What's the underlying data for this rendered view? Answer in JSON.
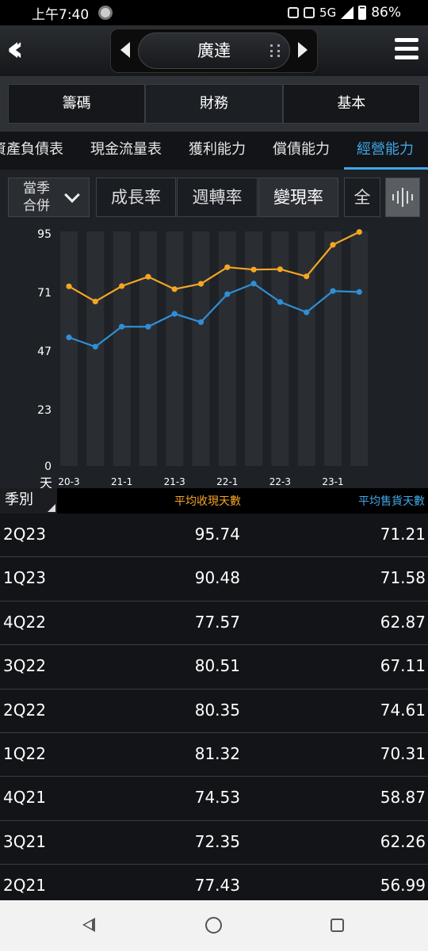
{
  "status_bar": {
    "time": "上午7:40",
    "network": "5G",
    "battery": "86%"
  },
  "header": {
    "stock_name": "廣達"
  },
  "top_tabs": [
    {
      "label": "籌碼",
      "active": false
    },
    {
      "label": "財務",
      "active": true
    },
    {
      "label": "基本",
      "active": false
    }
  ],
  "sub_tabs": [
    {
      "label": "資產負債表",
      "active": false
    },
    {
      "label": "現金流量表",
      "active": false
    },
    {
      "label": "獲利能力",
      "active": false
    },
    {
      "label": "償債能力",
      "active": false
    },
    {
      "label": "經營能力",
      "active": true
    }
  ],
  "controls": {
    "period_line1": "當季",
    "period_line2": "合併",
    "buttons": [
      {
        "label": "成長率",
        "selected": false
      },
      {
        "label": "週轉率",
        "selected": false
      },
      {
        "label": "變現率",
        "selected": true
      },
      {
        "label": "全",
        "selected": false
      }
    ]
  },
  "chart_data": {
    "type": "line",
    "y_unit": "天",
    "ylim": [
      0,
      95
    ],
    "y_ticks": [
      "95",
      "71",
      "47",
      "23",
      "0"
    ],
    "x_tick_labels": [
      "20-3",
      "21-1",
      "21-3",
      "22-1",
      "22-3",
      "23-1"
    ],
    "categories": [
      "3Q20",
      "4Q20",
      "1Q21",
      "2Q21",
      "3Q21",
      "4Q21",
      "1Q22",
      "2Q22",
      "3Q22",
      "4Q22",
      "1Q23",
      "2Q23"
    ],
    "series": [
      {
        "name": "平均收現天數",
        "color": "#f5a623",
        "values": [
          73.5,
          67.3,
          73.6,
          77.43,
          72.35,
          74.53,
          81.32,
          80.35,
          80.51,
          77.57,
          90.48,
          95.74
        ]
      },
      {
        "name": "平均售貨天數",
        "color": "#2f8fd6",
        "values": [
          52.6,
          48.8,
          57.0,
          56.99,
          62.26,
          58.87,
          70.31,
          74.61,
          67.11,
          62.87,
          71.58,
          71.21
        ]
      }
    ],
    "grid": true
  },
  "table": {
    "headers": {
      "period": "季別",
      "col1": "平均收現天數",
      "col2": "平均售貨天數"
    },
    "rows": [
      {
        "q": "2Q23",
        "v1": "95.74",
        "v2": "71.21"
      },
      {
        "q": "1Q23",
        "v1": "90.48",
        "v2": "71.58"
      },
      {
        "q": "4Q22",
        "v1": "77.57",
        "v2": "62.87"
      },
      {
        "q": "3Q22",
        "v1": "80.51",
        "v2": "67.11"
      },
      {
        "q": "2Q22",
        "v1": "80.35",
        "v2": "74.61"
      },
      {
        "q": "1Q22",
        "v1": "81.32",
        "v2": "70.31"
      },
      {
        "q": "4Q21",
        "v1": "74.53",
        "v2": "58.87"
      },
      {
        "q": "3Q21",
        "v1": "72.35",
        "v2": "62.26"
      },
      {
        "q": "2Q21",
        "v1": "77.43",
        "v2": "56.99"
      }
    ]
  }
}
